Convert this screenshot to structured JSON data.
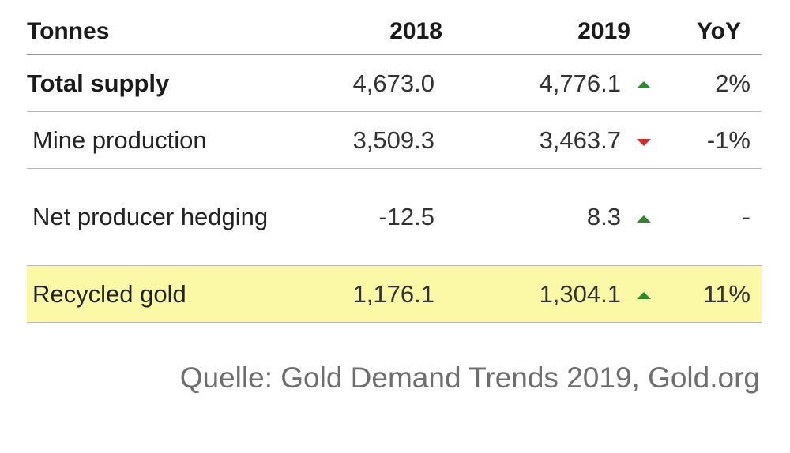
{
  "table": {
    "headers": {
      "label": "Tonnes",
      "col_2018": "2018",
      "col_2019": "2019",
      "col_yoy": "YoY"
    },
    "rows": [
      {
        "label": "Total supply",
        "v2018": "4,673.0",
        "v2019": "4,776.1",
        "trend": "up",
        "trend_icon": "triangle-up-icon",
        "yoy": "2%"
      },
      {
        "label": "Mine production",
        "v2018": "3,509.3",
        "v2019": "3,463.7",
        "trend": "down",
        "trend_icon": "triangle-down-icon",
        "yoy": "-1%"
      },
      {
        "label": "Net producer hedging",
        "v2018": "-12.5",
        "v2019": "8.3",
        "trend": "up",
        "trend_icon": "triangle-up-icon",
        "yoy": "-"
      },
      {
        "label": "Recycled gold",
        "v2018": "1,176.1",
        "v2019": "1,304.1",
        "trend": "up",
        "trend_icon": "triangle-up-icon",
        "yoy": "11%"
      }
    ]
  },
  "source": "Quelle: Gold Demand Trends 2019, Gold.org",
  "colors": {
    "highlight_row": "#fbf9a6",
    "trend_up": "#2b8a2b",
    "trend_down": "#d42a2a",
    "source_text": "#6e6e6e"
  }
}
